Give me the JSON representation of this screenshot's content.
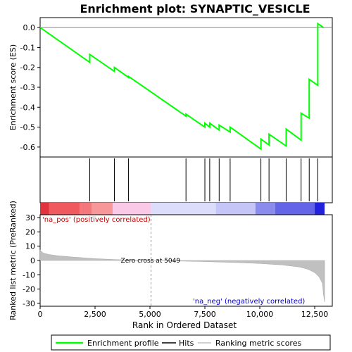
{
  "chart_data": {
    "type": "line",
    "title": "Enrichment plot: SYNAPTIC_VESICLE",
    "top_panel": {
      "ylabel": "Enrichment score (ES)",
      "ylim": [
        -0.65,
        0.05
      ],
      "yticks": [
        "0.0",
        "-0.1",
        "-0.2",
        "-0.3",
        "-0.4",
        "-0.5",
        "-0.6"
      ],
      "ytick_values": [
        0.0,
        -0.1,
        -0.2,
        -0.3,
        -0.4,
        -0.5,
        -0.6
      ],
      "series": [
        {
          "name": "Enrichment profile",
          "color": "#00ff00",
          "x": [
            0,
            2260,
            2260,
            3380,
            3380,
            4020,
            4020,
            6640,
            6640,
            7500,
            7500,
            7720,
            7720,
            8150,
            8150,
            8650,
            8650,
            10050,
            10050,
            10420,
            10420,
            11200,
            11200,
            11880,
            11880,
            12250,
            12250,
            12640,
            12640,
            12900
          ],
          "y": [
            0.0,
            -0.175,
            -0.135,
            -0.22,
            -0.2,
            -0.25,
            -0.245,
            -0.445,
            -0.435,
            -0.5,
            -0.48,
            -0.5,
            -0.48,
            -0.515,
            -0.49,
            -0.525,
            -0.5,
            -0.61,
            -0.56,
            -0.59,
            -0.535,
            -0.595,
            -0.51,
            -0.565,
            -0.43,
            -0.455,
            -0.26,
            -0.29,
            0.02,
            0.0
          ]
        }
      ]
    },
    "hits": {
      "name": "Hits",
      "x": [
        2260,
        3380,
        4020,
        6640,
        7500,
        7720,
        8150,
        8650,
        10050,
        10420,
        11200,
        11880,
        12250,
        12640
      ]
    },
    "rank_bar": {
      "segments": [
        {
          "from": 0,
          "to": 400,
          "color": "#e0333d"
        },
        {
          "from": 400,
          "to": 1800,
          "color": "#f05a5f"
        },
        {
          "from": 1800,
          "to": 2350,
          "color": "#f4777b"
        },
        {
          "from": 2350,
          "to": 3300,
          "color": "#f79799"
        },
        {
          "from": 3300,
          "to": 5049,
          "color": "#fbc9e8"
        },
        {
          "from": 5049,
          "to": 8000,
          "color": "#dcdcfb"
        },
        {
          "from": 8000,
          "to": 9800,
          "color": "#c5c5f7"
        },
        {
          "from": 9800,
          "to": 10700,
          "color": "#8b8bee"
        },
        {
          "from": 10700,
          "to": 12500,
          "color": "#6464e8"
        },
        {
          "from": 12500,
          "to": 12950,
          "color": "#2222dd"
        }
      ]
    },
    "bottom_panel": {
      "type": "area",
      "name": "Ranking metric scores",
      "color": "#c0c0c0",
      "xlabel": "Rank in Ordered Dataset",
      "ylabel": "Ranked list metric (PreRanked)",
      "ylim": [
        -32,
        32
      ],
      "yticks": [
        "30",
        "20",
        "10",
        "0",
        "-10",
        "-20",
        "-30"
      ],
      "ytick_values": [
        30,
        20,
        10,
        0,
        -10,
        -20,
        -30
      ],
      "x": [
        0,
        40,
        150,
        400,
        800,
        1500,
        2500,
        3500,
        4500,
        5049,
        6000,
        7500,
        9000,
        10000,
        11000,
        11800,
        12200,
        12500,
        12700,
        12850,
        12900,
        12950
      ],
      "y": [
        7.5,
        6.5,
        5.2,
        4.2,
        3.3,
        2.4,
        1.3,
        0.6,
        0.2,
        0.0,
        -0.3,
        -0.8,
        -1.5,
        -2.1,
        -3.1,
        -4.6,
        -6.2,
        -8.5,
        -11.5,
        -16,
        -24,
        -29
      ]
    },
    "xaxis": {
      "xlim": [
        0,
        13300
      ],
      "xticks": [
        "0",
        "2,500",
        "5,000",
        "7,500",
        "10,000",
        "12,500"
      ],
      "xtick_values": [
        0,
        2500,
        5000,
        7500,
        10000,
        12500
      ]
    },
    "zero_cross": {
      "value": 5049,
      "label": "Zero cross at 5049"
    },
    "annotations": {
      "pos_label": "'na_pos' (positively correlated)",
      "neg_label": "'na_neg' (negatively correlated)",
      "pos_color": "#cc0000",
      "neg_color": "#0000cc"
    },
    "legend": {
      "placement": "bottom",
      "items": [
        {
          "label": "Enrichment profile",
          "color": "#00ff00"
        },
        {
          "label": "Hits",
          "color": "#000000"
        },
        {
          "label": "Ranking metric scores",
          "color": "#c0c0c0"
        }
      ]
    }
  }
}
